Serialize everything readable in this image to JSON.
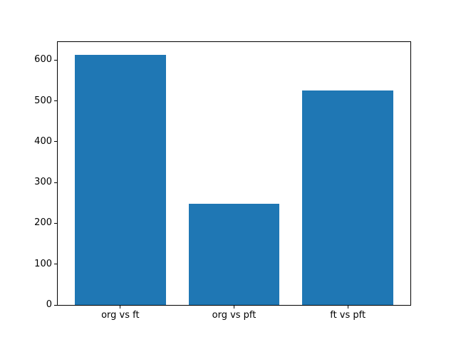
{
  "figure": {
    "background": "#ffffff",
    "axis_color": "#000000"
  },
  "chart_data": {
    "type": "bar",
    "title": "",
    "xlabel": "",
    "ylabel": "",
    "categories": [
      "org vs ft",
      "org vs pft",
      "ft vs pft"
    ],
    "values": [
      613,
      247,
      525
    ],
    "bar_color": "#1f77b4",
    "yticks": [
      0,
      100,
      200,
      300,
      400,
      500,
      600
    ],
    "ylim": [
      0,
      644
    ],
    "xlim": [
      -0.55,
      2.55
    ],
    "bar_width": 0.8,
    "grid": false,
    "legend": false
  }
}
